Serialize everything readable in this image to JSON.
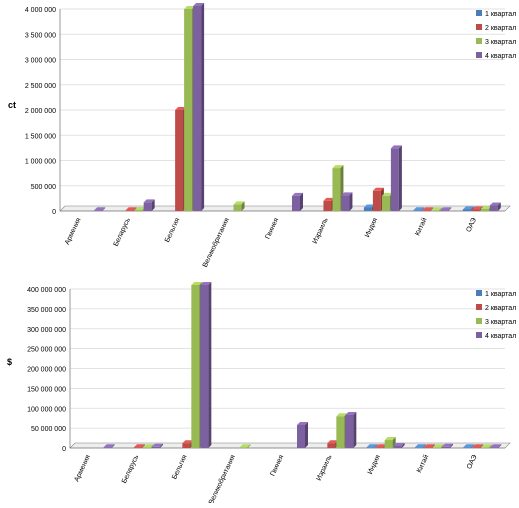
{
  "colors": {
    "q1": "#4A7EBB",
    "q2": "#BE4B48",
    "q3": "#98B954",
    "q4": "#7D60A0",
    "grid": "#d9d9d9",
    "axis": "#808080",
    "text": "#000000"
  },
  "chart_data": [
    {
      "type": "bar",
      "ylabel": "ct",
      "ylim": [
        0,
        4000000
      ],
      "yticks": [
        "0",
        "500 000",
        "1 000 000",
        "1 500 000",
        "2 000 000",
        "2 500 000",
        "3 000 000",
        "3 500 000",
        "4 000 000"
      ],
      "categories": [
        "Армения",
        "Беларусь",
        "Бельгия",
        "Великобритания",
        "Гвинея",
        "Израиль",
        "Индия",
        "Китай",
        "ОАЭ"
      ],
      "legend_position": "right",
      "grid": true,
      "series": [
        {
          "name": "1 квартал",
          "values": [
            0,
            0,
            0,
            0,
            0,
            0,
            70000,
            10000,
            30000
          ]
        },
        {
          "name": "2 квартал",
          "values": [
            0,
            10000,
            2000000,
            0,
            0,
            200000,
            400000,
            10000,
            30000
          ]
        },
        {
          "name": "3 квартал",
          "values": [
            0,
            20000,
            4000000,
            130000,
            0,
            850000,
            300000,
            10000,
            40000
          ]
        },
        {
          "name": "4 квартал",
          "values": [
            10000,
            170000,
            4060000,
            0,
            300000,
            310000,
            1240000,
            10000,
            110000
          ]
        }
      ]
    },
    {
      "type": "bar",
      "ylabel": "$",
      "ylim": [
        0,
        400000000
      ],
      "yticks": [
        "0",
        "50 000 000",
        "100 000 000",
        "150 000 000",
        "200 000 000",
        "250 000 000",
        "300 000 000",
        "350 000 000",
        "400 000 000"
      ],
      "categories": [
        "Армения",
        "Беларусь",
        "Бельгия",
        "Великобритания",
        "Гвинея",
        "Израиль",
        "Индия",
        "Китай",
        "ОАЭ"
      ],
      "legend_position": "right",
      "grid": true,
      "series": [
        {
          "name": "1 квартал",
          "values": [
            0,
            0,
            0,
            0,
            0,
            0,
            500000,
            300000,
            300000
          ]
        },
        {
          "name": "2 квартал",
          "values": [
            0,
            800000,
            12000000,
            0,
            0,
            12000000,
            2000000,
            300000,
            400000
          ]
        },
        {
          "name": "3 квартал",
          "values": [
            0,
            1500000,
            425000000,
            1000000,
            0,
            80000000,
            20000000,
            2000000,
            1000000
          ]
        },
        {
          "name": "4 квартал",
          "values": [
            1000000,
            3000000,
            425000000,
            0,
            58000000,
            83000000,
            5000000,
            3000000,
            2000000
          ]
        }
      ]
    }
  ]
}
